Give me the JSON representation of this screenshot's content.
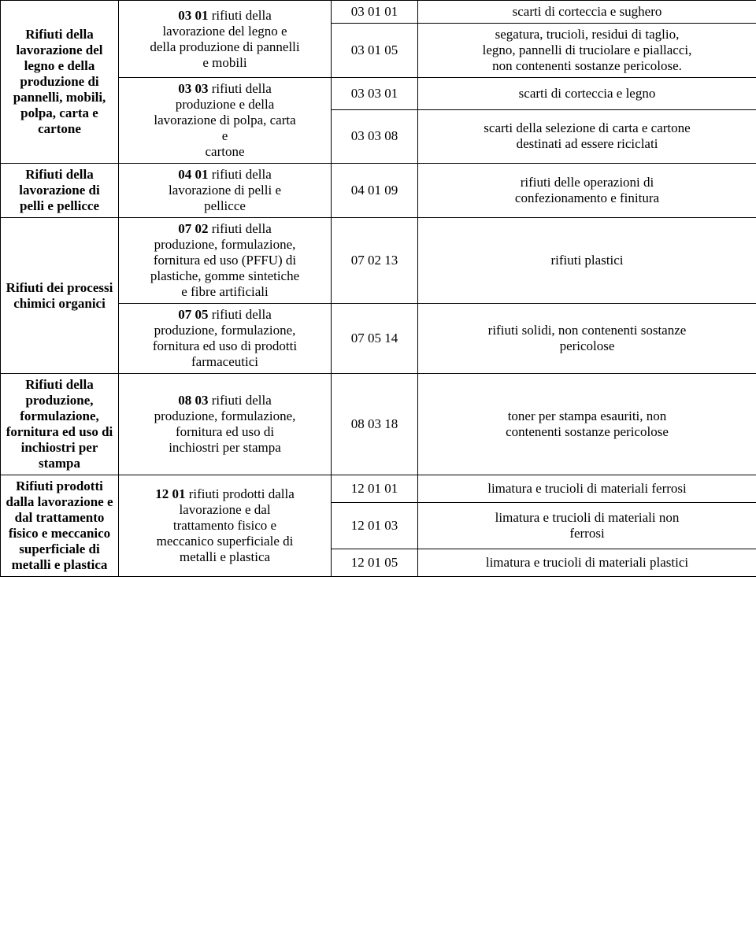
{
  "table": {
    "groups": [
      {
        "col1": "Rifiuti della lavorazione del legno e della produzione di pannelli, mobili, polpa, carta e cartone",
        "subs": [
          {
            "col2_bold": "03 01",
            "col2_rest": " rifiuti della\nlavorazione del legno e\ndella produzione di pannelli\ne mobili",
            "rows": [
              {
                "code": "03 01 01",
                "desc": "scarti di corteccia e sughero"
              },
              {
                "code": "03 01 05",
                "desc": "segatura, trucioli, residui di taglio,\nlegno, pannelli di truciolare e piallacci,\nnon contenenti sostanze pericolose."
              }
            ]
          },
          {
            "col2_bold": "03 03",
            "col2_rest": "  rifiuti della\nproduzione e della\nlavorazione di polpa, carta\ne\ncartone",
            "rows": [
              {
                "code": "03 03 01",
                "desc": "scarti di corteccia e legno"
              },
              {
                "code": "03 03 08",
                "desc": "scarti della selezione di carta e cartone\ndestinati ad essere riciclati"
              }
            ]
          }
        ]
      },
      {
        "col1": "Rifiuti della lavorazione di pelli e pellicce",
        "subs": [
          {
            "col2_bold": "04 01",
            "col2_rest": " rifiuti della\nlavorazione di pelli e\npellicce",
            "rows": [
              {
                "code": "04 01 09",
                "desc": "rifiuti delle operazioni di\nconfezionamento e finitura"
              }
            ]
          }
        ]
      },
      {
        "col1": "Rifiuti dei processi chimici organici",
        "subs": [
          {
            "col2_bold": "07 02",
            "col2_rest": " rifiuti della\nproduzione, formulazione,\nfornitura ed uso (PFFU) di\nplastiche, gomme sintetiche\ne fibre artificiali",
            "rows": [
              {
                "code": "07 02 13",
                "desc": "rifiuti plastici"
              }
            ]
          },
          {
            "col2_bold": "07 05",
            "col2_rest": "  rifiuti della\nproduzione, formulazione,\nfornitura ed uso di prodotti\nfarmaceutici",
            "rows": [
              {
                "code": "07 05 14",
                "desc": "rifiuti solidi, non contenenti sostanze\npericolose"
              }
            ]
          }
        ]
      },
      {
        "col1": "Rifiuti della produzione, formulazione, fornitura ed uso di inchiostri per stampa",
        "subs": [
          {
            "col2_bold": "08 03",
            "col2_rest": "  rifiuti della\nproduzione, formulazione,\nfornitura ed uso di\ninchiostri per stampa",
            "rows": [
              {
                "code": "08 03 18",
                "desc": "toner per stampa esauriti, non\ncontenenti sostanze pericolose"
              }
            ]
          }
        ]
      },
      {
        "col1": "Rifiuti prodotti dalla lavorazione e dal trattamento fisico e meccanico superficiale di metalli e plastica",
        "subs": [
          {
            "col2_bold": "12 01",
            "col2_rest": " rifiuti prodotti dalla\nlavorazione e dal\ntrattamento fisico e\nmeccanico superficiale di\nmetalli e plastica",
            "rows": [
              {
                "code": "12 01 01",
                "desc": "limatura e trucioli di materiali ferrosi"
              },
              {
                "code": "12 01 03",
                "desc": "limatura e trucioli di materiali non\nferrosi"
              },
              {
                "code": "12 01 05",
                "desc": "limatura e trucioli di materiali plastici"
              }
            ]
          }
        ]
      }
    ]
  }
}
